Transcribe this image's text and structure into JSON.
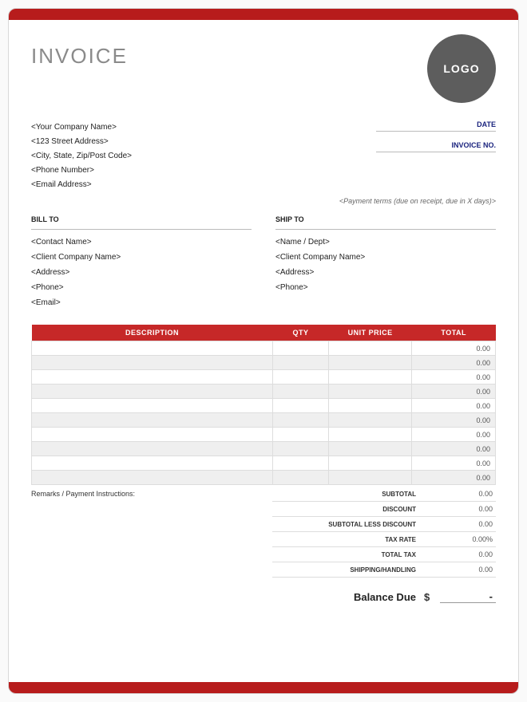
{
  "colors": {
    "accent": "#b71c1c",
    "header_bg": "#c62828",
    "logo_bg": "#5d5d5d",
    "logo_text_color": "#ffffff",
    "meta_label_color": "#1a237e",
    "page_bg": "#ffffff",
    "border_color": "#d8d8d8",
    "alt_row_bg": "#efefef"
  },
  "title": "INVOICE",
  "logo_text": "LOGO",
  "company": {
    "name": "<Your Company Name>",
    "street": "<123 Street Address>",
    "city": "<City, State, Zip/Post Code>",
    "phone": "<Phone Number>",
    "email": "<Email Address>"
  },
  "meta": {
    "date_label": "DATE",
    "invoice_no_label": "INVOICE NO."
  },
  "payment_terms": "<Payment terms (due on receipt, due in X days)>",
  "bill_to": {
    "header": "BILL TO",
    "contact": "<Contact Name>",
    "company": "<Client Company Name>",
    "address": "<Address>",
    "phone": "<Phone>",
    "email": "<Email>"
  },
  "ship_to": {
    "header": "SHIP TO",
    "name": "<Name / Dept>",
    "company": "<Client Company Name>",
    "address": "<Address>",
    "phone": "<Phone>"
  },
  "table": {
    "columns": {
      "description": "DESCRIPTION",
      "qty": "QTY",
      "unit_price": "UNIT PRICE",
      "total": "TOTAL"
    },
    "rows": [
      {
        "description": "",
        "qty": "",
        "unit_price": "",
        "total": "0.00"
      },
      {
        "description": "",
        "qty": "",
        "unit_price": "",
        "total": "0.00"
      },
      {
        "description": "",
        "qty": "",
        "unit_price": "",
        "total": "0.00"
      },
      {
        "description": "",
        "qty": "",
        "unit_price": "",
        "total": "0.00"
      },
      {
        "description": "",
        "qty": "",
        "unit_price": "",
        "total": "0.00"
      },
      {
        "description": "",
        "qty": "",
        "unit_price": "",
        "total": "0.00"
      },
      {
        "description": "",
        "qty": "",
        "unit_price": "",
        "total": "0.00"
      },
      {
        "description": "",
        "qty": "",
        "unit_price": "",
        "total": "0.00"
      },
      {
        "description": "",
        "qty": "",
        "unit_price": "",
        "total": "0.00"
      },
      {
        "description": "",
        "qty": "",
        "unit_price": "",
        "total": "0.00"
      }
    ]
  },
  "remarks_label": "Remarks / Payment Instructions:",
  "totals": {
    "subtotal": {
      "label": "SUBTOTAL",
      "value": "0.00"
    },
    "discount": {
      "label": "DISCOUNT",
      "value": "0.00"
    },
    "subtotal_less_discount": {
      "label": "SUBTOTAL LESS DISCOUNT",
      "value": "0.00"
    },
    "tax_rate": {
      "label": "TAX RATE",
      "value": "0.00%"
    },
    "total_tax": {
      "label": "TOTAL TAX",
      "value": "0.00"
    },
    "shipping": {
      "label": "SHIPPING/HANDLING",
      "value": "0.00"
    }
  },
  "balance": {
    "label": "Balance Due",
    "currency": "$",
    "value": "-"
  }
}
